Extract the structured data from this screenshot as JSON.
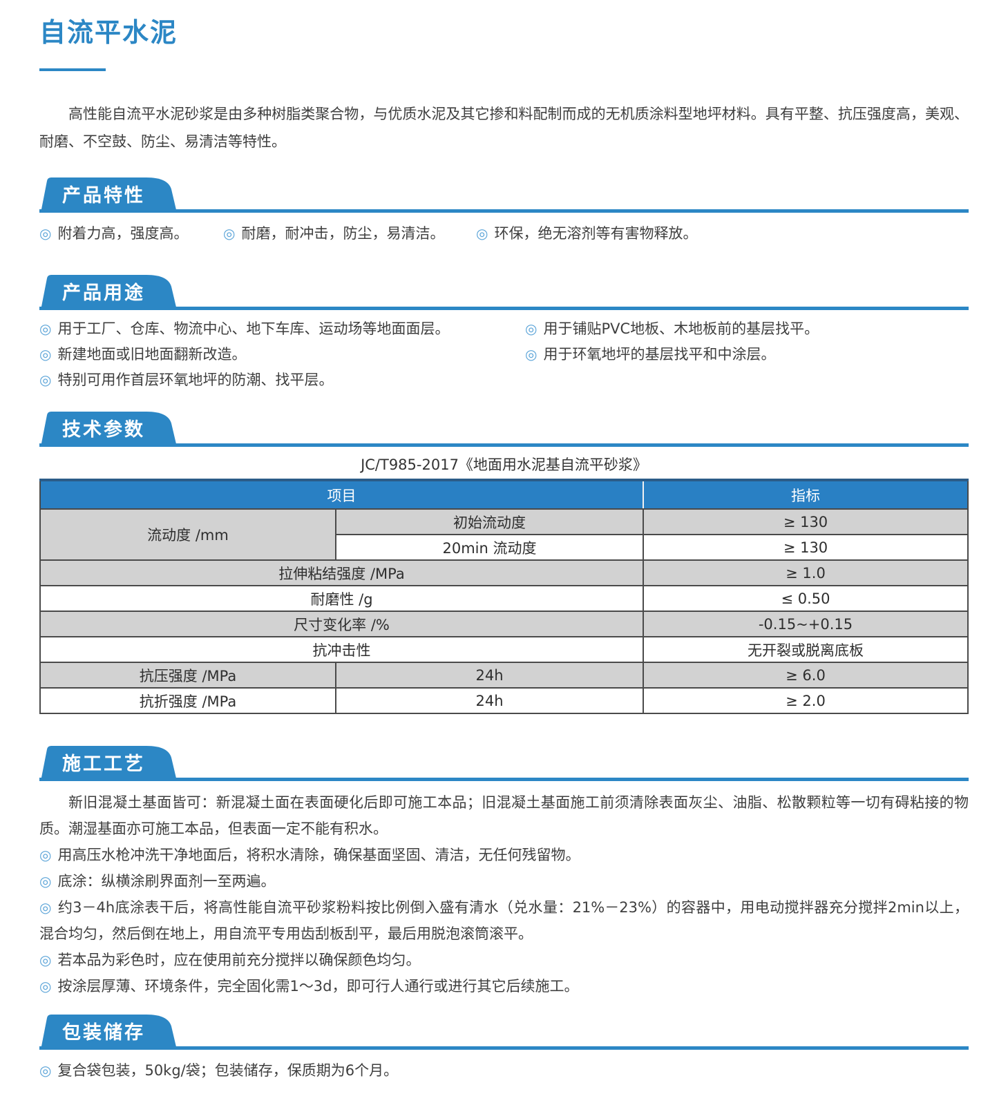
{
  "colors": {
    "accent_blue": "#2C87C5",
    "table_header_blue": "#2980C4",
    "row_gray": "#D2D2D2",
    "bullet_blue": "#5BA4D8"
  },
  "bullet_glyph": "◎",
  "page": {
    "title": "自流平水泥",
    "intro": "高性能自流平水泥砂浆是由多种树脂类聚合物，与优质水泥及其它掺和料配制而成的无机质涂料型地坪材料。具有平整、抗压强度高，美观、耐磨、不空鼓、防尘、易清洁等特性。"
  },
  "sections": {
    "features": {
      "heading": "产品特性",
      "bullets": [
        "附着力高，强度高。",
        "耐磨，耐冲击，防尘，易清洁。",
        "环保，绝无溶剂等有害物释放。"
      ]
    },
    "uses": {
      "heading": "产品用途",
      "left_bullets": [
        "用于工厂、仓库、物流中心、地下车库、运动场等地面面层。",
        "新建地面或旧地面翻新改造。",
        "特别可用作首层环氧地坪的防潮、找平层。"
      ],
      "right_bullets": [
        "用于铺贴PVC地板、木地板前的基层找平。",
        "用于环氧地坪的基层找平和中涂层。"
      ]
    },
    "tech": {
      "heading": "技术参数",
      "caption": "JC/T985-2017《地面用水泥基自流平砂浆》",
      "table": {
        "headers": {
          "item": "项目",
          "index": "指标"
        },
        "rows": [
          {
            "shade": "gray",
            "cells": [
              {
                "text": "流动度 /mm",
                "rowspan": 2
              },
              {
                "text": "初始流动度"
              },
              {
                "text": "≥ 130"
              }
            ]
          },
          {
            "shade": "white",
            "cells": [
              {
                "text": "20min 流动度"
              },
              {
                "text": "≥ 130"
              }
            ]
          },
          {
            "shade": "gray",
            "cells": [
              {
                "text": "拉伸粘结强度 /MPa",
                "colspan": 2
              },
              {
                "text": "≥ 1.0"
              }
            ]
          },
          {
            "shade": "white",
            "cells": [
              {
                "text": "耐磨性 /g",
                "colspan": 2
              },
              {
                "text": "≤ 0.50"
              }
            ]
          },
          {
            "shade": "gray",
            "cells": [
              {
                "text": "尺寸变化率 /%",
                "colspan": 2
              },
              {
                "text": "-0.15~+0.15"
              }
            ]
          },
          {
            "shade": "white",
            "cells": [
              {
                "text": "抗冲击性",
                "colspan": 2
              },
              {
                "text": "无开裂或脱离底板"
              }
            ]
          },
          {
            "shade": "gray",
            "cells": [
              {
                "text": "抗压强度 /MPa"
              },
              {
                "text": "24h"
              },
              {
                "text": "≥ 6.0"
              }
            ]
          },
          {
            "shade": "white",
            "cells": [
              {
                "text": "抗折强度 /MPa"
              },
              {
                "text": "24h"
              },
              {
                "text": "≥ 2.0"
              }
            ]
          }
        ]
      }
    },
    "process": {
      "heading": "施工工艺",
      "paragraph": "新旧混凝土基面皆可：新混凝土面在表面硬化后即可施工本品；旧混凝土基面施工前须清除表面灰尘、油脂、松散颗粒等一切有碍粘接的物质。潮湿基面亦可施工本品，但表面一定不能有积水。",
      "bullets": [
        "用高压水枪冲洗干净地面后，将积水清除，确保基面坚固、清洁，无任何残留物。",
        "底涂：纵横涂刷界面剂一至两遍。",
        "约3－4h底涂表干后，将高性能自流平砂浆粉料按比例倒入盛有清水（兑水量：21%－23%）的容器中，用电动搅拌器充分搅拌2min以上，混合均匀，然后倒在地上，用自流平专用齿刮板刮平，最后用脱泡滚筒滚平。",
        "若本品为彩色时，应在使用前充分搅拌以确保颜色均匀。",
        "按涂层厚薄、环境条件，完全固化需1～3d，即可行人通行或进行其它后续施工。"
      ]
    },
    "packaging": {
      "heading": "包装储存",
      "bullets": [
        "复合袋包装，50kg/袋；包装储存，保质期为6个月。"
      ]
    }
  }
}
